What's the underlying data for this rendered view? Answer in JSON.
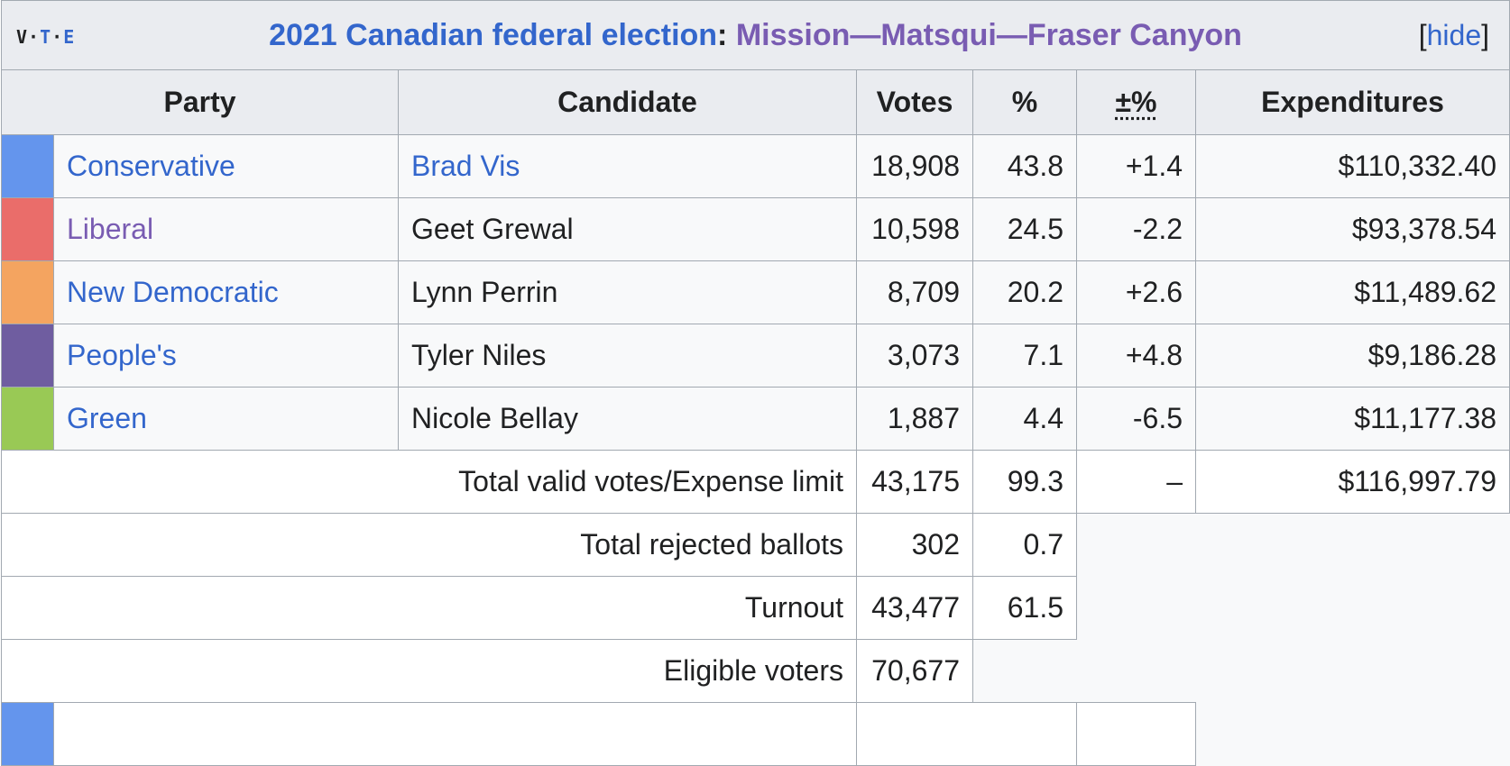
{
  "navbox": {
    "v": "V",
    "t": "T",
    "e": "E"
  },
  "title": {
    "election": "2021 Canadian federal election",
    "separator": ":",
    "riding": "Mission—Matsqui—Fraser Canyon",
    "hide_open": "[",
    "hide": "hide",
    "hide_close": "]"
  },
  "headers": [
    "Party",
    "Candidate",
    "Votes",
    "%",
    "±%",
    "Expenditures"
  ],
  "rows": [
    {
      "party": "Conservative",
      "candidate": "Brad Vis",
      "votes": "18,908",
      "pct": "43.8",
      "change": "+1.4",
      "expenditures": "$110,332.40"
    },
    {
      "party": "Liberal",
      "candidate": "Geet Grewal",
      "votes": "10,598",
      "pct": "24.5",
      "change": "-2.2",
      "expenditures": "$93,378.54"
    },
    {
      "party": "New Democratic",
      "candidate": "Lynn Perrin",
      "votes": "8,709",
      "pct": "20.2",
      "change": "+2.6",
      "expenditures": "$11,489.62"
    },
    {
      "party": "People's",
      "candidate": "Tyler Niles",
      "votes": "3,073",
      "pct": "7.1",
      "change": "+4.8",
      "expenditures": "$9,186.28"
    },
    {
      "party": "Green",
      "candidate": "Nicole Bellay",
      "votes": "1,887",
      "pct": "4.4",
      "change": "-6.5",
      "expenditures": "$11,177.38"
    }
  ],
  "party_colors": {
    "conservative": "#6495ED",
    "liberal": "#EA6D6A",
    "new_democratic": "#F4A460",
    "peoples": "#6F5DA0",
    "green": "#99C955"
  },
  "totals": {
    "valid": {
      "label": "Total valid votes/Expense limit",
      "votes": "43,175",
      "pct": "99.3",
      "change": "–",
      "expenditures": "$116,997.79"
    },
    "rejected": {
      "label": "Total rejected ballots",
      "votes": "302",
      "pct": "0.7"
    },
    "turnout": {
      "label": "Turnout",
      "votes": "43,477",
      "pct": "61.5"
    },
    "eligible": {
      "label": "Eligible voters",
      "votes": "70,677"
    }
  }
}
